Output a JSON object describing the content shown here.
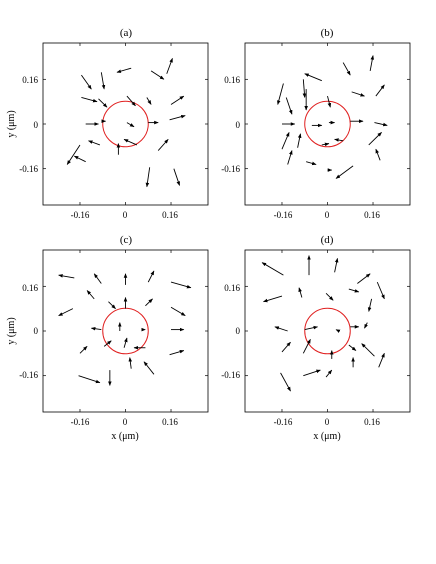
{
  "figure": {
    "panel_count": 4
  },
  "chart_data": [
    {
      "type": "quiver",
      "panel_label": "(a)",
      "xlabel": "",
      "ylabel": "y (μm)",
      "xlim": [
        -0.29,
        0.29
      ],
      "ylim": [
        -0.29,
        0.29
      ],
      "xticks": [
        -0.16,
        0,
        0.16
      ],
      "yticks": [
        0.16,
        0,
        -0.16
      ],
      "xtick_labels": [
        "-0.16",
        "0",
        "0.16"
      ],
      "ytick_labels": [
        "0.16",
        "0",
        "-0.16"
      ],
      "circle": {
        "cx": 0,
        "cy": 0,
        "r": 0.08,
        "color": "#e02020"
      },
      "arrow_color": "#000000",
      "arrows": [
        [
          -0.155,
          0.175,
          0.035,
          -0.05
        ],
        [
          -0.085,
          0.185,
          0.01,
          -0.06
        ],
        [
          0.02,
          0.2,
          -0.05,
          -0.015
        ],
        [
          0.09,
          0.19,
          0.045,
          -0.03
        ],
        [
          0.145,
          0.18,
          0.02,
          0.055
        ],
        [
          -0.155,
          0.095,
          0.055,
          -0.015
        ],
        [
          -0.095,
          0.09,
          0.03,
          -0.03
        ],
        [
          0.005,
          0.1,
          0.03,
          -0.035
        ],
        [
          0.075,
          0.095,
          0.015,
          -0.025
        ],
        [
          0.16,
          0.07,
          0.045,
          0.03
        ],
        [
          -0.14,
          0.0,
          0.045,
          0.0
        ],
        [
          -0.075,
          0.01,
          0.005,
          0.0
        ],
        [
          0.005,
          0.005,
          0.025,
          -0.015
        ],
        [
          0.08,
          0.005,
          0.035,
          0.0
        ],
        [
          0.155,
          0.015,
          0.055,
          0.015
        ],
        [
          -0.16,
          -0.075,
          -0.045,
          -0.07
        ],
        [
          -0.09,
          -0.075,
          -0.04,
          0.015
        ],
        [
          -0.025,
          -0.11,
          0.0,
          0.04
        ],
        [
          0.04,
          -0.075,
          -0.045,
          0.02
        ],
        [
          0.115,
          -0.095,
          0.035,
          0.04
        ],
        [
          -0.14,
          -0.135,
          -0.04,
          0.02
        ],
        [
          0.085,
          -0.155,
          -0.01,
          -0.07
        ],
        [
          0.17,
          -0.16,
          0.02,
          -0.06
        ]
      ]
    },
    {
      "type": "quiver",
      "panel_label": "(b)",
      "xlabel": "",
      "ylabel": "",
      "xlim": [
        -0.29,
        0.29
      ],
      "ylim": [
        -0.29,
        0.29
      ],
      "xticks": [
        -0.16,
        0,
        0.16
      ],
      "yticks": [
        0.16,
        0,
        -0.16
      ],
      "xtick_labels": [
        "-0.16",
        "0",
        "0.16"
      ],
      "ytick_labels": [
        "0.16",
        "0",
        "-0.16"
      ],
      "circle": {
        "cx": 0,
        "cy": 0,
        "r": 0.08,
        "color": "#e02020"
      },
      "arrow_color": "#000000",
      "arrows": [
        [
          -0.155,
          0.145,
          -0.02,
          -0.075
        ],
        [
          -0.085,
          0.16,
          0.005,
          -0.065
        ],
        [
          -0.02,
          0.155,
          -0.06,
          0.025
        ],
        [
          0.055,
          0.22,
          0.025,
          -0.045
        ],
        [
          0.15,
          0.19,
          0.01,
          0.055
        ],
        [
          -0.145,
          0.095,
          0.02,
          -0.06
        ],
        [
          -0.075,
          0.125,
          0.0,
          -0.075
        ],
        [
          0.0,
          0.1,
          0.01,
          -0.04
        ],
        [
          0.085,
          0.115,
          0.045,
          -0.015
        ],
        [
          0.17,
          0.1,
          0.03,
          0.04
        ],
        [
          -0.16,
          0.0,
          0.045,
          0.0
        ],
        [
          -0.055,
          -0.005,
          0.035,
          0.0
        ],
        [
          0.005,
          0.005,
          0.02,
          0.0
        ],
        [
          0.08,
          0.01,
          0.045,
          0.0
        ],
        [
          0.165,
          0.005,
          0.045,
          -0.01
        ],
        [
          -0.16,
          -0.09,
          0.025,
          0.06
        ],
        [
          -0.105,
          -0.085,
          0.01,
          0.05
        ],
        [
          -0.02,
          -0.075,
          0.025,
          0.005
        ],
        [
          0.055,
          -0.06,
          -0.03,
          0.005
        ],
        [
          0.145,
          -0.075,
          0.045,
          0.045
        ],
        [
          -0.14,
          -0.145,
          0.015,
          0.05
        ],
        [
          -0.075,
          -0.135,
          0.035,
          -0.01
        ],
        [
          0.0,
          -0.165,
          0.015,
          0.0
        ],
        [
          0.09,
          -0.15,
          -0.06,
          -0.045
        ],
        [
          0.185,
          -0.13,
          -0.015,
          0.04
        ]
      ]
    },
    {
      "type": "quiver",
      "panel_label": "(c)",
      "xlabel": "x (μm)",
      "ylabel": "y (μm)",
      "xlim": [
        -0.29,
        0.29
      ],
      "ylim": [
        -0.29,
        0.29
      ],
      "xticks": [
        -0.16,
        0,
        0.16
      ],
      "yticks": [
        0.16,
        0,
        -0.16
      ],
      "xtick_labels": [
        "-0.16",
        "0",
        "0.16"
      ],
      "ytick_labels": [
        "0.16",
        "0",
        "-0.16"
      ],
      "circle": {
        "cx": 0,
        "cy": 0,
        "r": 0.08,
        "color": "#e02020"
      },
      "arrow_color": "#000000",
      "arrows": [
        [
          -0.18,
          0.19,
          -0.055,
          0.01
        ],
        [
          -0.085,
          0.17,
          -0.025,
          0.035
        ],
        [
          0.0,
          0.165,
          0.0,
          0.04
        ],
        [
          0.08,
          0.175,
          0.02,
          0.04
        ],
        [
          0.16,
          0.175,
          0.07,
          -0.02
        ],
        [
          -0.185,
          0.08,
          -0.05,
          -0.025
        ],
        [
          -0.11,
          0.115,
          -0.025,
          0.03
        ],
        [
          -0.06,
          0.105,
          0.025,
          -0.025
        ],
        [
          0.0,
          0.08,
          0.0,
          0.04
        ],
        [
          0.07,
          0.09,
          0.025,
          0.025
        ],
        [
          0.16,
          0.085,
          0.05,
          -0.03
        ],
        [
          -0.085,
          0.005,
          -0.035,
          0.005
        ],
        [
          -0.02,
          0.0,
          0.0,
          0.03
        ],
        [
          0.07,
          0.005,
          0.0,
          0.0
        ],
        [
          0.16,
          0.005,
          0.045,
          0.0
        ],
        [
          -0.16,
          -0.08,
          0.025,
          0.025
        ],
        [
          -0.075,
          -0.055,
          0.025,
          0.02
        ],
        [
          -0.005,
          -0.06,
          0.01,
          0.035
        ],
        [
          0.07,
          -0.06,
          -0.04,
          0.0
        ],
        [
          0.155,
          -0.085,
          0.05,
          0.015
        ],
        [
          -0.165,
          -0.16,
          0.075,
          -0.025
        ],
        [
          -0.055,
          -0.14,
          0.0,
          -0.055
        ],
        [
          0.02,
          -0.135,
          -0.005,
          0.04
        ],
        [
          0.1,
          -0.155,
          -0.035,
          0.045
        ]
      ]
    },
    {
      "type": "quiver",
      "panel_label": "(d)",
      "xlabel": "x (μm)",
      "ylabel": "",
      "xlim": [
        -0.29,
        0.29
      ],
      "ylim": [
        -0.29,
        0.29
      ],
      "xticks": [
        -0.16,
        0,
        0.16
      ],
      "yticks": [
        0.16,
        0,
        -0.16
      ],
      "xtick_labels": [
        "-0.16",
        "0",
        "0.16"
      ],
      "ytick_labels": [
        "0.16",
        "0",
        "-0.16"
      ],
      "circle": {
        "cx": 0,
        "cy": 0,
        "r": 0.08,
        "color": "#e02020"
      },
      "arrow_color": "#000000",
      "arrows": [
        [
          -0.155,
          0.2,
          -0.075,
          0.045
        ],
        [
          -0.065,
          0.2,
          0.0,
          0.07
        ],
        [
          0.025,
          0.21,
          0.01,
          0.05
        ],
        [
          0.105,
          0.17,
          0.045,
          0.035
        ],
        [
          0.175,
          0.175,
          0.025,
          -0.06
        ],
        [
          -0.16,
          0.125,
          -0.065,
          -0.02
        ],
        [
          -0.09,
          0.12,
          -0.01,
          0.035
        ],
        [
          -0.005,
          0.135,
          0.025,
          -0.025
        ],
        [
          0.075,
          0.15,
          0.035,
          -0.01
        ],
        [
          0.155,
          0.115,
          -0.01,
          -0.045
        ],
        [
          -0.14,
          0.0,
          -0.045,
          0.015
        ],
        [
          -0.08,
          0.005,
          0.045,
          0.01
        ],
        [
          0.04,
          0.0,
          -0.01,
          0.005
        ],
        [
          0.08,
          0.015,
          0.03,
          0.0
        ],
        [
          0.14,
          0.03,
          -0.01,
          -0.02
        ],
        [
          -0.16,
          -0.075,
          0.03,
          0.035
        ],
        [
          -0.085,
          -0.08,
          0.025,
          0.05
        ],
        [
          0.015,
          -0.1,
          0.0,
          0.03
        ],
        [
          0.075,
          -0.05,
          0.025,
          -0.02
        ],
        [
          0.165,
          -0.09,
          -0.045,
          0.045
        ],
        [
          -0.165,
          -0.15,
          0.035,
          -0.065
        ],
        [
          -0.085,
          -0.16,
          0.06,
          0.02
        ],
        [
          -0.005,
          -0.165,
          0.02,
          0.025
        ],
        [
          0.09,
          -0.13,
          0.0,
          0.035
        ],
        [
          0.18,
          -0.13,
          0.02,
          0.05
        ]
      ]
    }
  ]
}
